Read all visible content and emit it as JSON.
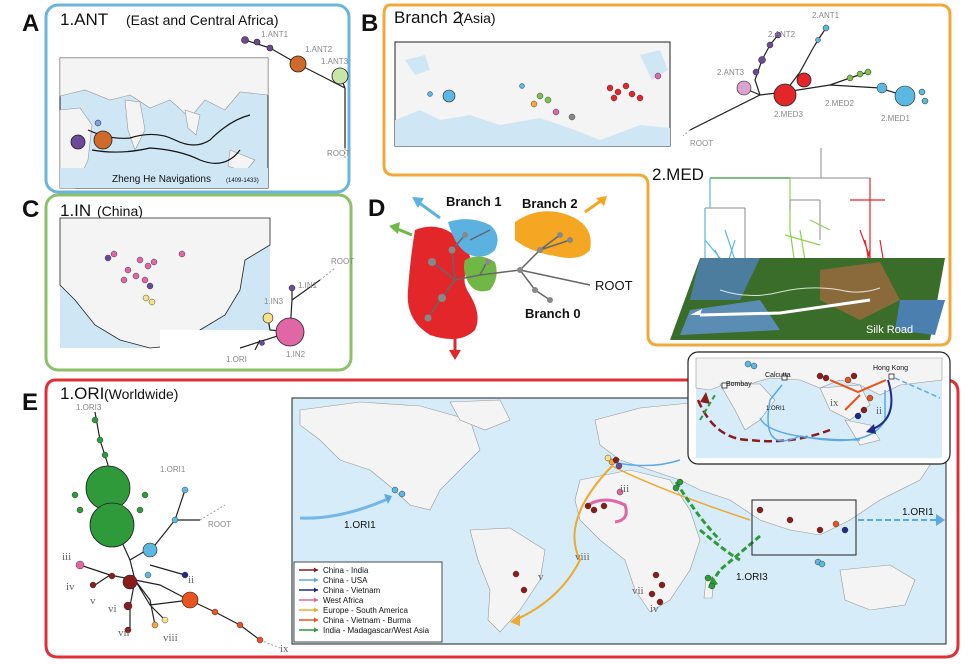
{
  "panels": {
    "a": {
      "letter": "A",
      "title": "1.ANT",
      "subtitle": "(East and Central Africa)",
      "map_caption": "Zheng He Navigations",
      "map_caption_years": "(1409-1433)",
      "nodes": [
        "1.ANT1",
        "1.ANT2",
        "1.ANT3",
        "ROOT"
      ]
    },
    "b": {
      "letter": "B",
      "title": "Branch 2",
      "subtitle": "(Asia)",
      "nodes": [
        "2.ANT1",
        "2.ANT2",
        "2.ANT3",
        "2.MED3",
        "2.MED2",
        "2.MED1",
        "ROOT"
      ],
      "med_label": "2.MED",
      "silk_road": "Silk Road"
    },
    "c": {
      "letter": "C",
      "title": "1.IN",
      "subtitle": "(China)",
      "nodes": [
        "1.IN1",
        "1.IN3",
        "1.IN2",
        "ROOT",
        "1.ORI"
      ]
    },
    "d": {
      "letter": "D",
      "branch1": "Branch 1",
      "branch2": "Branch 2",
      "branch0": "Branch 0",
      "root": "ROOT"
    },
    "e": {
      "letter": "E",
      "title": "1.ORI",
      "subtitle": "(Worldwide)",
      "tree_labels": [
        "1.ORI3",
        "1.ORI1",
        "ROOT",
        "iii",
        "iv",
        "v",
        "vi",
        "vii",
        "viii",
        "ii",
        "ix"
      ],
      "map_labels": {
        "ori1_left": "1.ORI1",
        "ori1_right": "1.ORI1",
        "ori3": "1.ORI3",
        "v": "v",
        "iii": "iii",
        "viii": "viii",
        "vii": "vii",
        "iv": "iv"
      },
      "inset_labels": {
        "calcutta": "Calcutta",
        "bombay": "Bombay",
        "hong_kong": "Hong Kong",
        "ori1": "1.ORI1",
        "ix": "ix",
        "ii": "ii"
      },
      "legend": [
        {
          "label": "China - India",
          "color": "#8b1c1c"
        },
        {
          "label": "China - USA",
          "color": "#5aa9e6"
        },
        {
          "label": "China - Vietnam",
          "color": "#1f2a8a"
        },
        {
          "label": "West Africa",
          "color": "#e066a6"
        },
        {
          "label": "Europe - South America",
          "color": "#f0a830"
        },
        {
          "label": "China - Vietnam - Burma",
          "color": "#e8531f"
        },
        {
          "label": "India - Madagascar/West Asia",
          "color": "#2e9a3a"
        }
      ]
    }
  },
  "colors": {
    "ant_frame": "#6cb4dc",
    "branch2_frame": "#f3a93a",
    "in_frame": "#8cc16a",
    "ori_frame": "#e03037",
    "branch1_blob": "#5bb2e0",
    "branch2_blob": "#f5a623",
    "ori_blob": "#e3262a",
    "in_blob": "#6fb845"
  }
}
